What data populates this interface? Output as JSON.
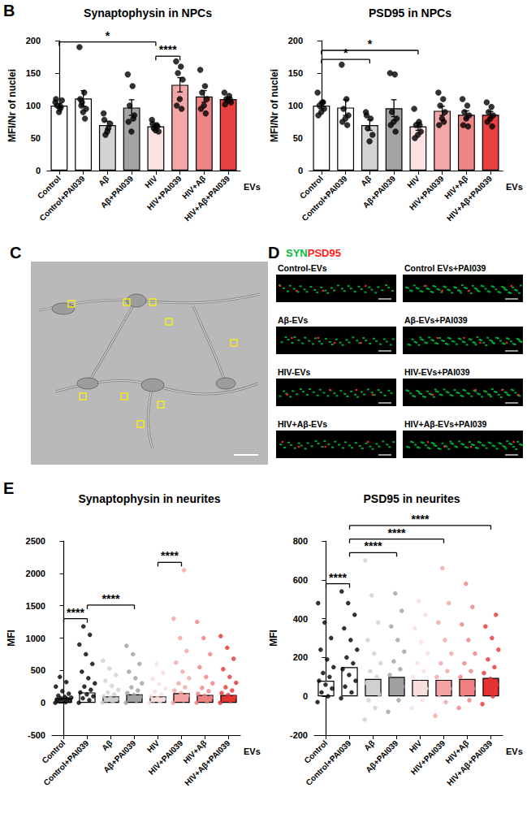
{
  "chart_data": [
    {
      "type": "bar",
      "panel_label": "B",
      "title": "Synaptophysin in NPCs",
      "y_label": "MFI/Nr of nuclei",
      "x_label": "EVs",
      "categories": [
        "Control",
        "Control+PAI039",
        "Aβ",
        "Aβ+PAI039",
        "HIV",
        "HIV+PAI039",
        "HIV+Aβ",
        "HIV+Aβ+PAI039"
      ],
      "values": [
        100,
        111,
        70,
        97,
        68,
        132,
        114,
        110
      ],
      "error": [
        3,
        12,
        6,
        12,
        3,
        11,
        9,
        2
      ],
      "points": [
        [
          105,
          95,
          100,
          108,
          90,
          110,
          98
        ],
        [
          190,
          120,
          100,
          95,
          90,
          110,
          80,
          105
        ],
        [
          88,
          65,
          55,
          72,
          60,
          78
        ],
        [
          148,
          130,
          100,
          85,
          60,
          75,
          80
        ],
        [
          78,
          70,
          65,
          60,
          62,
          72,
          68
        ],
        [
          168,
          160,
          150,
          140,
          110,
          100,
          95
        ],
        [
          155,
          130,
          120,
          110,
          100,
          95,
          88
        ],
        [
          120,
          115,
          110,
          105,
          108,
          102,
          110
        ]
      ],
      "colors": [
        "#ffffff",
        "#ffffff",
        "#d4d4d4",
        "#a3a3a3",
        "#fbe1e1",
        "#f4a7a7",
        "#f08585",
        "#e8403f"
      ],
      "color": "#000000",
      "ylim": [
        0,
        200
      ],
      "yticks": [
        0,
        50,
        100,
        150,
        200
      ],
      "comparisons": [
        {
          "from": "Control",
          "to": "HIV",
          "label": "*"
        },
        {
          "from": "HIV",
          "to": "HIV+PAI039",
          "label": "****"
        }
      ]
    },
    {
      "type": "bar",
      "title": "PSD95 in NPCs",
      "y_label": "MFI/Nr of nuclei",
      "x_label": "EVs",
      "categories": [
        "Control",
        "Control+PAI039",
        "Aβ",
        "Aβ+PAI039",
        "HIV",
        "HIV+PAI039",
        "HIV+Aβ",
        "HIV+Aβ+PAI039"
      ],
      "values": [
        100,
        97,
        70,
        96,
        68,
        92,
        86,
        86
      ],
      "error": [
        5,
        12,
        8,
        13,
        6,
        7,
        6,
        5
      ],
      "points": [
        [
          120,
          105,
          100,
          95,
          90,
          85,
          105
        ],
        [
          163,
          110,
          95,
          85,
          80,
          75,
          70
        ],
        [
          90,
          80,
          65,
          55,
          45,
          85
        ],
        [
          150,
          148,
          90,
          80,
          75,
          70,
          60
        ],
        [
          95,
          75,
          70,
          60,
          55,
          50,
          70
        ],
        [
          120,
          110,
          100,
          90,
          80,
          70,
          75
        ],
        [
          110,
          100,
          90,
          85,
          80,
          70,
          68
        ],
        [
          105,
          98,
          90,
          85,
          80,
          75,
          68
        ]
      ],
      "colors": [
        "#ffffff",
        "#ffffff",
        "#d4d4d4",
        "#a3a3a3",
        "#fbe1e1",
        "#f4a7a7",
        "#f08585",
        "#e8403f"
      ],
      "color": "#000000",
      "ylim": [
        0,
        200
      ],
      "yticks": [
        0,
        50,
        100,
        150,
        200
      ],
      "comparisons": [
        {
          "from": "Control",
          "to": "Aβ",
          "label": "*"
        },
        {
          "from": "Control",
          "to": "HIV",
          "label": "*"
        }
      ]
    },
    {
      "type": "bar",
      "panel_label": "E",
      "title": "Synaptophysin in neurites",
      "y_label": "MFI",
      "x_label": "EVs",
      "categories": [
        "Control",
        "Control+PAI039",
        "Aβ",
        "Aβ+PAI039",
        "HIV",
        "HIV+PAI039",
        "HIV+Aβ",
        "HIV+Aβ+PAI039"
      ],
      "values": [
        70,
        160,
        100,
        130,
        100,
        150,
        120,
        120
      ],
      "points": [
        [
          0,
          10,
          20,
          30,
          40,
          50,
          60,
          70,
          80,
          90,
          110,
          140,
          180,
          250,
          320,
          400
        ],
        [
          0,
          40,
          70,
          100,
          130,
          160,
          200,
          250,
          300,
          380,
          480,
          600,
          750,
          900,
          1050,
          1180
        ],
        [
          0,
          20,
          40,
          60,
          80,
          100,
          130,
          160,
          200,
          260,
          340,
          430,
          530,
          650
        ],
        [
          0,
          30,
          60,
          90,
          120,
          150,
          190,
          240,
          300,
          380,
          480,
          600,
          750,
          880
        ],
        [
          0,
          20,
          40,
          60,
          80,
          100,
          130,
          170,
          220,
          290,
          370,
          460,
          600
        ],
        [
          0,
          40,
          80,
          110,
          150,
          190,
          240,
          300,
          380,
          480,
          620,
          800,
          1000,
          1300,
          2050
        ],
        [
          0,
          20,
          50,
          80,
          110,
          140,
          180,
          230,
          300,
          400,
          550,
          750,
          1000,
          1250
        ],
        [
          0,
          30,
          60,
          90,
          120,
          150,
          190,
          240,
          310,
          400,
          520,
          680,
          850,
          1030
        ]
      ],
      "colors": [
        "#ffffff",
        "#ffffff",
        "#d0d0d0",
        "#a0a0a0",
        "#f9dede",
        "#f4a3a3",
        "#ef8080",
        "#e63232"
      ],
      "ylim": [
        -500,
        2500
      ],
      "yticks": [
        -500,
        0,
        500,
        1000,
        1500,
        2000,
        2500
      ],
      "comparisons": [
        {
          "from": "Control",
          "to": "Control+PAI039",
          "label": "****"
        },
        {
          "from": "Control+PAI039",
          "to": "Aβ+PAI039",
          "label": "****"
        },
        {
          "from": "HIV",
          "to": "HIV+PAI039",
          "label": "****"
        }
      ]
    },
    {
      "type": "bar",
      "title": "PSD95 in neurites",
      "y_label": "MFI",
      "x_label": "EVs",
      "categories": [
        "Control",
        "Control+PAI039",
        "Aβ",
        "Aβ+PAI039",
        "HIV",
        "HIV+PAI039",
        "HIV+Aβ",
        "HIV+Aβ+PAI039"
      ],
      "values": [
        80,
        150,
        90,
        100,
        85,
        85,
        90,
        95
      ],
      "points": [
        [
          -30,
          0,
          20,
          40,
          60,
          80,
          100,
          120,
          150,
          190,
          240,
          300,
          380,
          480
        ],
        [
          -10,
          20,
          50,
          80,
          110,
          140,
          170,
          200,
          240,
          290,
          350,
          420,
          480,
          540
        ],
        [
          -120,
          -60,
          -20,
          10,
          40,
          70,
          100,
          130,
          170,
          220,
          290,
          380,
          520,
          700
        ],
        [
          -80,
          -20,
          20,
          50,
          80,
          110,
          140,
          180,
          230,
          290,
          360,
          440,
          530
        ],
        [
          -60,
          -20,
          10,
          40,
          70,
          100,
          130,
          170,
          220,
          280,
          350,
          420,
          490
        ],
        [
          -100,
          -30,
          10,
          40,
          70,
          100,
          130,
          170,
          220,
          290,
          380,
          480,
          660
        ],
        [
          -60,
          -20,
          10,
          40,
          70,
          100,
          130,
          170,
          220,
          290,
          370,
          460,
          580
        ],
        [
          -40,
          0,
          30,
          60,
          90,
          120,
          150,
          190,
          240,
          300,
          360,
          420
        ]
      ],
      "colors": [
        "#ffffff",
        "#ffffff",
        "#d0d0d0",
        "#a0a0a0",
        "#f9dede",
        "#f4a3a3",
        "#ef8080",
        "#e63232"
      ],
      "ylim": [
        -200,
        800
      ],
      "yticks": [
        -200,
        0,
        200,
        400,
        600,
        800
      ],
      "comparisons": [
        {
          "from": "Control",
          "to": "Control+PAI039",
          "label": "****"
        },
        {
          "from": "Control+PAI039",
          "to": "Aβ+PAI039",
          "label": "****"
        },
        {
          "from": "Control+PAI039",
          "to": "HIV+PAI039",
          "label": "****"
        },
        {
          "from": "Control+PAI039",
          "to": "HIV+Aβ+PAI039",
          "label": "****"
        }
      ]
    }
  ],
  "panel_c": {
    "label": "C"
  },
  "panel_d": {
    "label": "D",
    "channels": [
      {
        "name": "SYN",
        "color": "#00c040"
      },
      {
        "name": "PSD95",
        "color": "#ff2020"
      }
    ],
    "images": [
      "Control-EVs",
      "Control EVs+PAI039",
      "Aβ-EVs",
      "Aβ-EVs+PAI039",
      "HIV-EVs",
      "HIV-EVs+PAI039",
      "HIV+Aβ-EVs",
      "HIV+Aβ-EVs+PAI039"
    ]
  }
}
